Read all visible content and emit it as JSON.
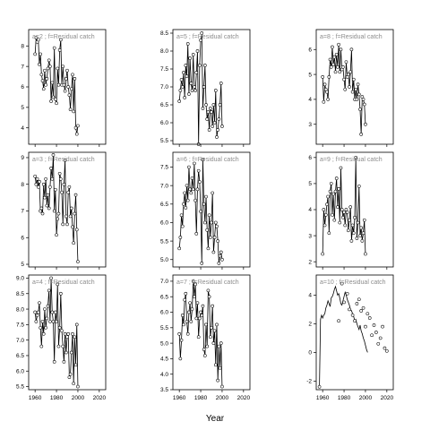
{
  "chart_data": {
    "type": "line",
    "xlabel": "Year",
    "x_ticks": [
      1960,
      1980,
      2000,
      2020
    ],
    "xlim": [
      1954,
      2026
    ],
    "x_tick_rows": [
      "bottom"
    ],
    "panels": [
      {
        "label": "a=2 ; f=Residual catch",
        "ylim": [
          3.2,
          8.8
        ],
        "yticks": [
          4,
          5,
          6,
          7,
          8
        ],
        "start_year": 1960,
        "open_points": true,
        "values": [
          7.6,
          8.4,
          8.2,
          8.3,
          7.1,
          7.6,
          6.6,
          6.3,
          5.9,
          6.8,
          6.1,
          6.4,
          6.9,
          7.3,
          7.0,
          5.3,
          6.2,
          5.5,
          7.9,
          5.4,
          5.2,
          6.9,
          6.1,
          7.8,
          8.3,
          6.1,
          7.0,
          6.1,
          5.8,
          6.4,
          6.8,
          6.0,
          5.6,
          4.9,
          5.9,
          6.6,
          4.8,
          6.4,
          4.0,
          3.7,
          4.1
        ]
      },
      {
        "label": "a=3 ; f=Residual catch",
        "ylim": [
          4.9,
          9.2
        ],
        "yticks": [
          5,
          6,
          7,
          8,
          9
        ],
        "start_year": 1960,
        "open_points": true,
        "values": [
          8.3,
          8.0,
          8.2,
          7.9,
          8.1,
          7.0,
          7.1,
          6.9,
          8.0,
          7.5,
          8.2,
          7.2,
          7.6,
          7.1,
          7.9,
          8.6,
          8.2,
          9.1,
          7.0,
          7.8,
          6.1,
          6.7,
          6.9,
          8.4,
          8.2,
          7.7,
          6.5,
          8.0,
          8.9,
          6.8,
          6.5,
          7.7,
          7.9,
          6.8,
          7.1,
          6.4,
          5.8,
          6.9,
          7.6,
          6.3,
          5.1
        ]
      },
      {
        "label": "a=4 ; f=Residual catch",
        "ylim": [
          5.4,
          9.1
        ],
        "yticks": [
          5.5,
          6.0,
          6.5,
          7.0,
          7.5,
          8.0,
          8.5,
          9.0
        ],
        "start_year": 1960,
        "open_points": true,
        "values": [
          7.9,
          7.6,
          7.8,
          7.9,
          8.2,
          7.4,
          6.8,
          7.6,
          7.2,
          8.0,
          7.4,
          7.7,
          8.1,
          8.6,
          7.6,
          9.0,
          7.9,
          7.6,
          6.3,
          7.9,
          7.6,
          8.8,
          6.8,
          7.4,
          8.5,
          7.3,
          6.8,
          6.3,
          7.2,
          6.6,
          7.1,
          7.2,
          5.8,
          5.9,
          6.6,
          7.2,
          5.6,
          7.1,
          6.2,
          7.5,
          5.5
        ]
      },
      {
        "label": "a=5 ; f=Residual catch",
        "ylim": [
          5.4,
          8.6
        ],
        "yticks": [
          5.5,
          6.0,
          6.5,
          7.0,
          7.5,
          8.0,
          8.5
        ],
        "start_year": 1960,
        "open_points": true,
        "values": [
          6.6,
          6.9,
          7.2,
          7.0,
          7.4,
          6.7,
          7.6,
          7.3,
          8.2,
          6.8,
          7.8,
          7.1,
          6.9,
          7.9,
          7.0,
          6.9,
          7.4,
          8.0,
          5.4,
          7.6,
          8.3,
          8.5,
          6.4,
          7.0,
          7.6,
          6.5,
          6.1,
          6.3,
          5.8,
          6.4,
          6.3,
          5.9,
          6.5,
          6.0,
          6.9,
          5.6,
          5.8,
          6.1,
          6.5,
          7.1,
          5.9
        ]
      },
      {
        "label": "a=6 ; f=Residual catch",
        "ylim": [
          4.8,
          7.9
        ],
        "yticks": [
          5.0,
          5.5,
          6.0,
          6.5,
          7.0,
          7.5
        ],
        "start_year": 1960,
        "open_points": true,
        "values": [
          5.3,
          5.6,
          6.2,
          5.9,
          6.5,
          6.8,
          6.4,
          7.0,
          6.6,
          7.5,
          6.9,
          6.8,
          7.2,
          6.9,
          7.6,
          6.6,
          5.7,
          6.9,
          7.4,
          7.1,
          6.3,
          4.9,
          7.7,
          6.5,
          6.0,
          6.7,
          5.8,
          5.3,
          6.2,
          5.6,
          6.0,
          6.8,
          5.2,
          5.6,
          6.0,
          5.9,
          5.5,
          4.9,
          5.1,
          5.2,
          5.0
        ]
      },
      {
        "label": "a=7 ; f=Residual catch",
        "ylim": [
          3.5,
          7.2
        ],
        "yticks": [
          3.5,
          4.0,
          4.5,
          5.0,
          5.5,
          6.0,
          6.5,
          7.0
        ],
        "start_year": 1960,
        "open_points": true,
        "values": [
          5.3,
          4.5,
          5.1,
          5.9,
          5.6,
          6.4,
          6.6,
          5.7,
          5.3,
          6.0,
          6.3,
          5.7,
          6.1,
          7.0,
          6.5,
          6.9,
          5.8,
          6.3,
          5.2,
          5.8,
          6.0,
          5.9,
          6.2,
          4.8,
          4.6,
          5.6,
          4.9,
          6.7,
          6.5,
          5.2,
          5.5,
          6.2,
          5.0,
          5.4,
          4.3,
          5.6,
          3.8,
          4.9,
          4.2,
          5.0,
          3.6
        ]
      },
      {
        "label": "a=8 ; f=Residual catch",
        "ylim": [
          2.2,
          6.8
        ],
        "yticks": [
          3,
          4,
          5,
          6
        ],
        "start_year": 1960,
        "open_points": true,
        "values": [
          4.9,
          3.9,
          4.6,
          4.4,
          4.3,
          4.0,
          4.9,
          5.6,
          5.3,
          6.1,
          5.4,
          5.7,
          5.1,
          5.8,
          5.3,
          6.2,
          5.1,
          6.0,
          5.2,
          5.3,
          4.8,
          4.4,
          5.5,
          4.9,
          5.0,
          4.5,
          5.1,
          6.0,
          4.3,
          4.8,
          4.0,
          4.4,
          4.0,
          4.6,
          4.2,
          3.6,
          2.6,
          4.1,
          4.0,
          3.8,
          3.0
        ]
      },
      {
        "label": "a=9 ; f=Residual catch",
        "ylim": [
          1.8,
          6.2
        ],
        "yticks": [
          2,
          3,
          4,
          5,
          6
        ],
        "start_year": 1960,
        "open_points": true,
        "values": [
          2.3,
          4.0,
          3.4,
          3.8,
          4.2,
          4.5,
          3.1,
          4.7,
          5.0,
          3.8,
          4.6,
          3.6,
          4.7,
          5.2,
          4.1,
          4.8,
          3.5,
          5.6,
          4.0,
          3.7,
          3.9,
          3.4,
          4.0,
          3.9,
          3.2,
          3.6,
          4.1,
          2.8,
          3.4,
          3.1,
          3.7,
          6.0,
          2.9,
          3.5,
          4.9,
          3.0,
          3.3,
          2.8,
          3.1,
          3.6,
          2.3
        ]
      },
      {
        "label": "a=10 ; f=Residual catch",
        "ylim": [
          -2.6,
          5.4
        ],
        "yticks": [
          -2,
          0,
          2,
          4
        ],
        "start_year": 1957,
        "open_points": false,
        "values": [
          -2.4,
          2.3,
          2.6,
          2.4,
          2.6,
          2.7,
          3.1,
          3.3,
          3.6,
          3.4,
          3.2,
          3.8,
          3.9,
          4.1,
          4.4,
          4.6,
          4.3,
          4.0,
          4.1,
          3.8,
          3.4,
          3.3,
          3.6,
          3.9,
          4.2,
          4.0,
          3.7,
          3.5,
          3.3,
          3.0,
          2.9,
          2.7,
          2.5,
          2.2,
          2.3,
          2.0,
          1.8,
          1.6,
          1.9,
          1.5,
          1.3,
          1.0,
          0.8,
          0.5,
          0.2,
          0.0
        ],
        "scatter_x": [
          1975,
          1978,
          1980,
          1983,
          1985,
          1988,
          1990,
          1992,
          1994,
          1996,
          1998,
          2000,
          2002,
          2004,
          2006,
          2008,
          2010,
          2012,
          2014,
          2016,
          2018,
          2020
        ],
        "scatter_y": [
          2.2,
          4.8,
          3.5,
          4.1,
          3.0,
          2.6,
          2.2,
          3.4,
          3.7,
          2.9,
          3.1,
          1.8,
          2.7,
          2.4,
          1.2,
          1.9,
          1.4,
          0.6,
          1.0,
          1.8,
          0.3,
          0.1
        ]
      }
    ]
  }
}
